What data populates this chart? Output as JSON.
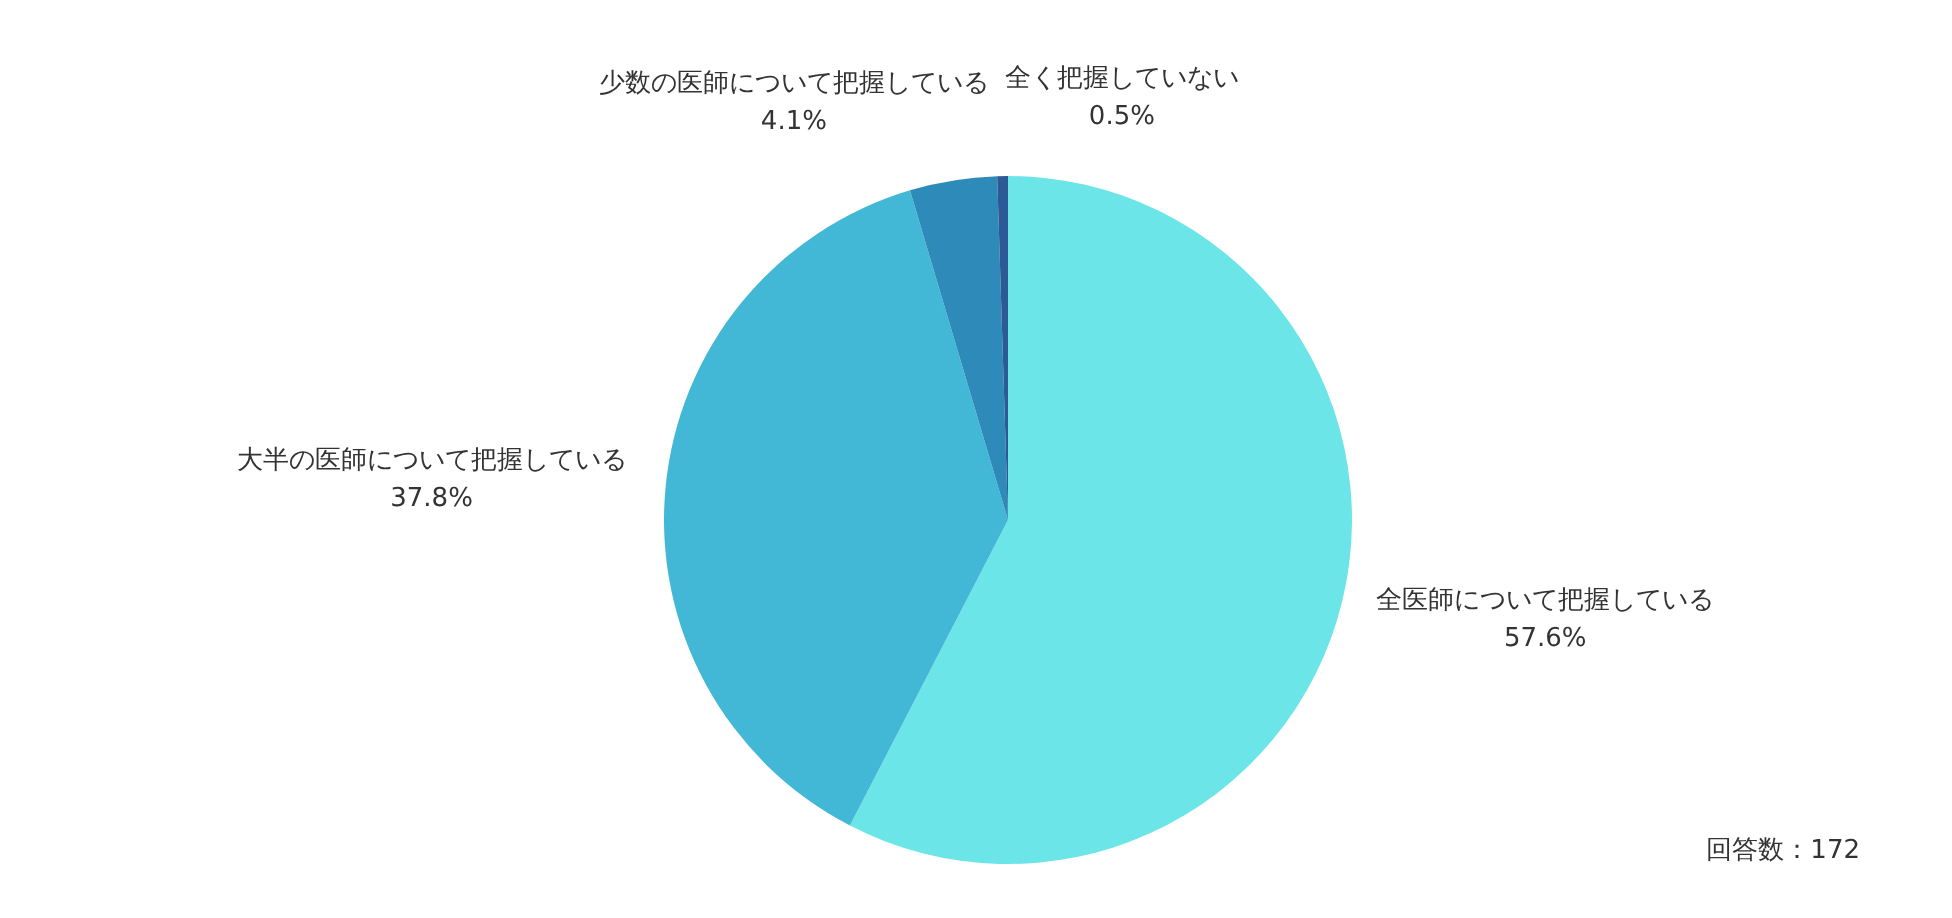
{
  "chart_data": {
    "type": "pie",
    "categories": [
      "全医師について把握している",
      "大半の医師について把握している",
      "少数の医師について把握している",
      "全く把握していない"
    ],
    "values": [
      57.6,
      37.8,
      4.1,
      0.5
    ],
    "value_labels": [
      "57.6%",
      "37.8%",
      "4.1%",
      "0.5%"
    ],
    "colors": [
      "#6ce5e8",
      "#43b8d6",
      "#2e8bb9",
      "#2c5a96"
    ],
    "annotations": [
      "回答数：172"
    ]
  }
}
